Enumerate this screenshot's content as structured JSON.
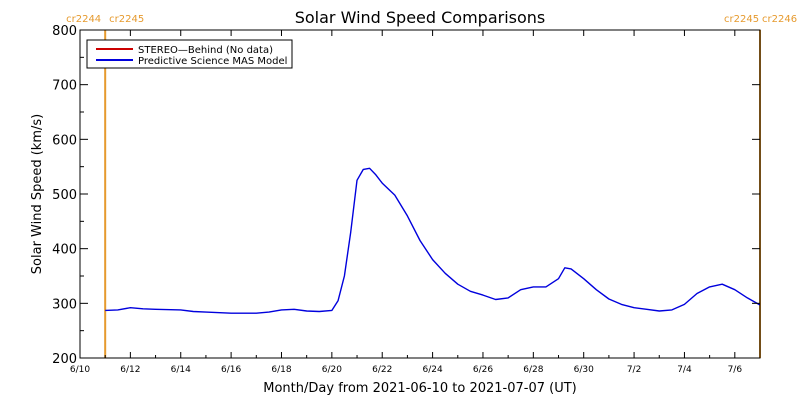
{
  "chart_data": {
    "type": "line",
    "title": "Solar Wind Speed Comparisons",
    "xlabel": "Month/Day from 2021-06-10 to 2021-07-07 (UT)",
    "ylabel": "Solar Wind Speed (km/s)",
    "xlim": [
      "2021-06-10",
      "2021-07-07"
    ],
    "ylim": [
      200,
      800
    ],
    "yticks": [
      200,
      300,
      400,
      500,
      600,
      700,
      800
    ],
    "xtick_labels": [
      "6/10",
      "6/12",
      "6/14",
      "6/16",
      "6/18",
      "6/20",
      "6/22",
      "6/24",
      "6/26",
      "6/28",
      "6/30",
      "7/2",
      "7/4",
      "7/6"
    ],
    "grid": false,
    "legend_position": "top-left",
    "legend": [
      {
        "label": "STEREO—Behind (No data)",
        "color": "#cc0000"
      },
      {
        "label": "Predictive Science MAS Model",
        "color": "#0000dd"
      }
    ],
    "carrington_markers": [
      {
        "date": "2021-06-11",
        "left_label": "cr2244",
        "right_label": "cr2245",
        "color": "#e69a2e"
      },
      {
        "date": "2021-07-07",
        "left_label": "cr2245",
        "right_label": "cr2246",
        "color": "#e69a2e"
      }
    ],
    "series": [
      {
        "name": "Predictive Science MAS Model",
        "color": "#0000dd",
        "x": [
          "2021-06-11T00:00",
          "2021-06-11T12:00",
          "2021-06-12T00:00",
          "2021-06-12T12:00",
          "2021-06-13T00:00",
          "2021-06-14T00:00",
          "2021-06-14T12:00",
          "2021-06-15T00:00",
          "2021-06-16T00:00",
          "2021-06-17T00:00",
          "2021-06-17T12:00",
          "2021-06-18T00:00",
          "2021-06-18T12:00",
          "2021-06-19T00:00",
          "2021-06-19T12:00",
          "2021-06-20T00:00",
          "2021-06-20T06:00",
          "2021-06-20T12:00",
          "2021-06-20T18:00",
          "2021-06-21T00:00",
          "2021-06-21T06:00",
          "2021-06-21T12:00",
          "2021-06-21T18:00",
          "2021-06-22T00:00",
          "2021-06-22T12:00",
          "2021-06-23T00:00",
          "2021-06-23T12:00",
          "2021-06-24T00:00",
          "2021-06-24T12:00",
          "2021-06-25T00:00",
          "2021-06-25T12:00",
          "2021-06-26T00:00",
          "2021-06-26T12:00",
          "2021-06-27T00:00",
          "2021-06-27T12:00",
          "2021-06-28T00:00",
          "2021-06-28T12:00",
          "2021-06-29T00:00",
          "2021-06-29T06:00",
          "2021-06-29T12:00",
          "2021-06-30T00:00",
          "2021-06-30T12:00",
          "2021-07-01T00:00",
          "2021-07-01T12:00",
          "2021-07-02T00:00",
          "2021-07-02T12:00",
          "2021-07-03T00:00",
          "2021-07-03T12:00",
          "2021-07-04T00:00",
          "2021-07-04T12:00",
          "2021-07-05T00:00",
          "2021-07-05T12:00",
          "2021-07-06T00:00",
          "2021-07-06T12:00",
          "2021-07-07T00:00"
        ],
        "y": [
          287,
          288,
          292,
          290,
          289,
          288,
          285,
          284,
          282,
          282,
          284,
          288,
          289,
          286,
          285,
          287,
          305,
          350,
          430,
          525,
          545,
          547,
          535,
          520,
          498,
          460,
          415,
          380,
          355,
          335,
          322,
          315,
          307,
          310,
          325,
          330,
          330,
          345,
          365,
          363,
          345,
          325,
          308,
          298,
          292,
          289,
          286,
          288,
          298,
          318,
          330,
          335,
          325,
          310,
          297
        ]
      }
    ]
  }
}
